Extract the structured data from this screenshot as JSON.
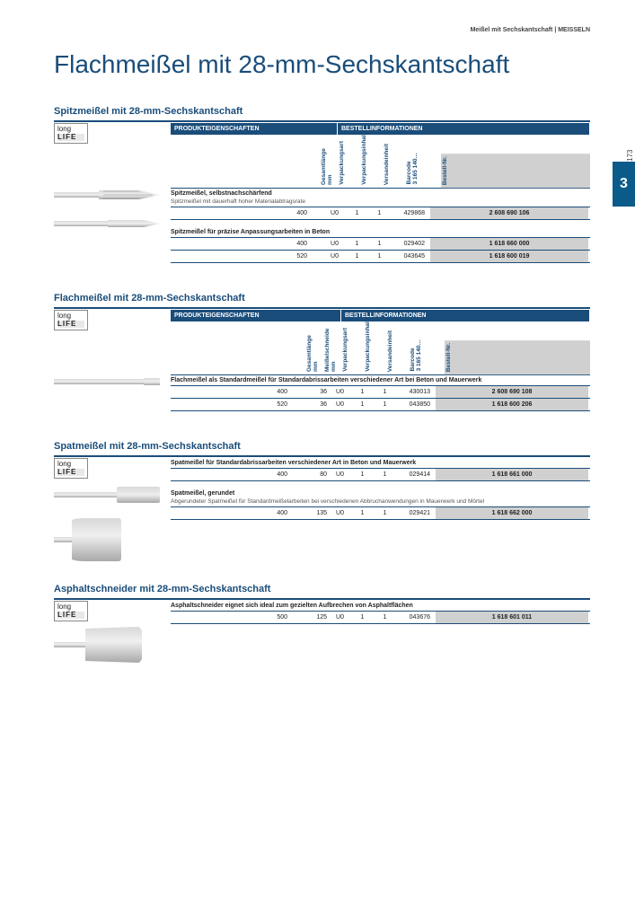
{
  "breadcrumb": "Meißel mit Sechskantschaft | MEISSELN",
  "side_tab": {
    "number": "3",
    "page": "173"
  },
  "title": "Flachmeißel mit 28-mm-Sechskantschaft",
  "badges": {
    "longlife_top": "long",
    "longlife_bot": "LIFE"
  },
  "header_groups": {
    "produkt": "PRODUKTEIGENSCHAFTEN",
    "bestell": "BESTELLINFORMATIONEN"
  },
  "colheads": {
    "gesamtlaenge": "Gesamtlänge mm",
    "meisselschneide": "Meißelschneide mm",
    "verpackungsart": "Verpackungsart",
    "verpackungsinhalt": "Verpackungsinhalt",
    "versandeinheit": "Versandeinheit",
    "barcode": "Barcode\n3 165 140…",
    "bestellnr": "Bestell-Nr."
  },
  "sections": [
    {
      "title": "Spitzmeißel mit 28-mm-Sechskantschaft",
      "has_colheads": true,
      "has_ms": false,
      "groups": [
        {
          "desc": "Spitzmeißel, selbstnachschärfend",
          "sub": "Spitzmeißel mit dauerhaft hoher Materialabtragsrate",
          "chisel_type": "pointed-ribbed",
          "rows": [
            {
              "len": "400",
              "vp": "U0",
              "vpi": "1",
              "ve": "1",
              "bc": "429868",
              "bn": "2 608 690 106"
            }
          ]
        },
        {
          "desc": "Spitzmeißel für präzise Anpassungsarbeiten in Beton",
          "sub": "",
          "chisel_type": "pointed-smooth",
          "rows": [
            {
              "len": "400",
              "vp": "U0",
              "vpi": "1",
              "ve": "1",
              "bc": "029402",
              "bn": "1 618 660 000"
            },
            {
              "len": "520",
              "vp": "U0",
              "vpi": "1",
              "ve": "1",
              "bc": "043645",
              "bn": "1 618 600 019"
            }
          ]
        }
      ]
    },
    {
      "title": "Flachmeißel mit 28-mm-Sechskantschaft",
      "has_colheads": true,
      "has_ms": true,
      "groups": [
        {
          "desc": "Flachmeißel als Standardmeißel für Standardabrissarbeiten verschiedener Art bei Beton und Mauerwerk",
          "sub": "",
          "chisel_type": "flat",
          "rows": [
            {
              "len": "400",
              "ms": "36",
              "vp": "U0",
              "vpi": "1",
              "ve": "1",
              "bc": "430013",
              "bn": "2 608 690 108"
            },
            {
              "len": "520",
              "ms": "36",
              "vp": "U0",
              "vpi": "1",
              "ve": "1",
              "bc": "043850",
              "bn": "1 618 600 206"
            }
          ]
        }
      ]
    },
    {
      "title": "Spatmeißel mit 28-mm-Sechskantschaft",
      "has_colheads": false,
      "has_ms": true,
      "groups": [
        {
          "desc": "Spatmeißel für Standardabrissarbeiten verschiedener Art in Beton und Mauerwerk",
          "sub": "",
          "chisel_type": "spade-narrow",
          "rows": [
            {
              "len": "400",
              "ms": "80",
              "vp": "U0",
              "vpi": "1",
              "ve": "1",
              "bc": "029414",
              "bn": "1 618 661 000"
            }
          ]
        },
        {
          "desc": "Spatmeißel, gerundet",
          "sub": "Abgerundeter Spatmeißel für Standardmeißelarbeiten bei verschiedenen Abbruchanwendungen in Mauerwerk und Mörtel",
          "chisel_type": "spade-wide",
          "rows": [
            {
              "len": "400",
              "ms": "135",
              "vp": "U0",
              "vpi": "1",
              "ve": "1",
              "bc": "029421",
              "bn": "1 618 662 000"
            }
          ]
        }
      ]
    },
    {
      "title": "Asphaltschneider mit 28-mm-Sechskantschaft",
      "has_colheads": false,
      "has_ms": true,
      "groups": [
        {
          "desc": "Asphaltschneider eignet sich ideal zum gezielten Aufbrechen von Asphaltflächen",
          "sub": "",
          "chisel_type": "asphalt",
          "rows": [
            {
              "len": "500",
              "ms": "125",
              "vp": "U0",
              "vpi": "1",
              "ve": "1",
              "bc": "043676",
              "bn": "1 618 601 011"
            }
          ]
        }
      ]
    }
  ],
  "colors": {
    "primary": "#1a4d7a",
    "accent": "#0a5a8a",
    "grey_box": "#d0d0d0",
    "steel1": "#d8d8d8",
    "steel2": "#a8a8a8"
  }
}
